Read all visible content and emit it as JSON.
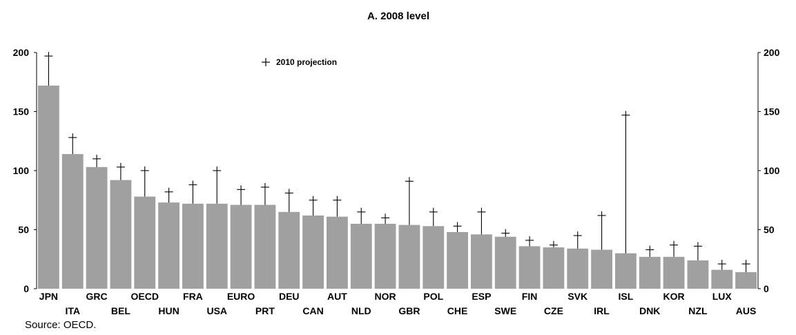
{
  "chart_data": {
    "type": "bar",
    "title": "A. 2008 level",
    "categories": [
      "JPN",
      "ITA",
      "GRC",
      "BEL",
      "OECD",
      "HUN",
      "FRA",
      "USA",
      "EURO",
      "PRT",
      "DEU",
      "CAN",
      "AUT",
      "NLD",
      "NOR",
      "GBR",
      "POL",
      "CHE",
      "ESP",
      "SWE",
      "FIN",
      "CZE",
      "SVK",
      "IRL",
      "ISL",
      "DNK",
      "KOR",
      "NZL",
      "LUX",
      "AUS"
    ],
    "series": [
      {
        "values": [
          172,
          114,
          103,
          92,
          78,
          73,
          72,
          72,
          71,
          71,
          65,
          62,
          61,
          55,
          55,
          54,
          53,
          48,
          46,
          44,
          36,
          35,
          34,
          33,
          30,
          27,
          27,
          24,
          16,
          14
        ]
      },
      {
        "name": "2010 projection",
        "values": [
          197,
          128,
          110,
          103,
          100,
          82,
          88,
          100,
          84,
          86,
          81,
          75,
          75,
          65,
          60,
          91,
          65,
          53,
          65,
          47,
          41,
          37,
          45,
          62,
          147,
          33,
          37,
          36,
          21,
          21
        ]
      }
    ],
    "ylim": [
      0,
      200
    ],
    "yticks": [
      0,
      50,
      100,
      150,
      200
    ],
    "grid": false,
    "legend_position": "top-left",
    "bar_color": "#a0a0a0",
    "marker_color": "#000000"
  },
  "source": "Source: OECD."
}
